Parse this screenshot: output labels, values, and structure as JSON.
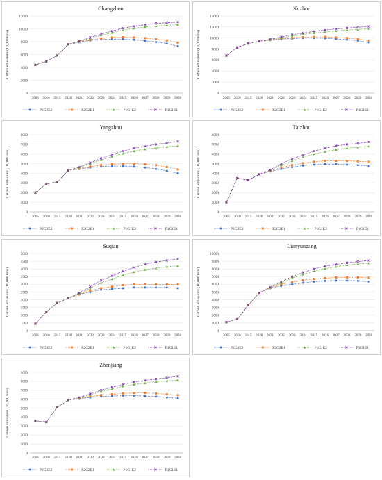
{
  "chart_data": [
    {
      "type": "line",
      "title": "Changzhou",
      "ylabel": "Carbon emissions (10,000 tons)",
      "ylim": [
        0,
        12000
      ],
      "yticks": [
        0,
        2000,
        4000,
        6000,
        8000,
        10000,
        12000
      ],
      "x": [
        2005,
        2010,
        2015,
        2020,
        2021,
        2022,
        2023,
        2024,
        2025,
        2026,
        2027,
        2028,
        2029,
        2030
      ],
      "colors": {
        "P2G2E2": "#4472c4",
        "P2G2E1": "#ed7d31",
        "P1G1E2": "#70ad47",
        "P1G1E1": "#7030a0"
      },
      "series": [
        {
          "name": "P2G2E2",
          "values": [
            4400,
            4950,
            5850,
            7600,
            7900,
            8200,
            8350,
            8400,
            8400,
            8300,
            8150,
            7950,
            7700,
            7300
          ]
        },
        {
          "name": "P2G2E1",
          "values": [
            4400,
            4950,
            5850,
            7600,
            8000,
            8300,
            8500,
            8650,
            8700,
            8650,
            8550,
            8400,
            8200,
            7850
          ]
        },
        {
          "name": "P1G1E2",
          "values": [
            4400,
            4950,
            5850,
            7600,
            8050,
            8500,
            9000,
            9400,
            9800,
            10100,
            10300,
            10450,
            10550,
            10650
          ]
        },
        {
          "name": "P1G1E1",
          "values": [
            4400,
            4950,
            5850,
            7600,
            8100,
            8650,
            9200,
            9650,
            10100,
            10400,
            10650,
            10850,
            10950,
            11050
          ]
        }
      ]
    },
    {
      "type": "line",
      "title": "Xuzhou",
      "ylabel": "Carbon emissions (10,000 tons)",
      "ylim": [
        0,
        14000
      ],
      "yticks": [
        0,
        2000,
        4000,
        6000,
        8000,
        10000,
        12000,
        14000
      ],
      "x": [
        2005,
        2010,
        2015,
        2020,
        2021,
        2022,
        2023,
        2024,
        2025,
        2026,
        2027,
        2028,
        2029,
        2030
      ],
      "series": [
        {
          "name": "P2G2E2",
          "values": [
            6800,
            8300,
            9000,
            9400,
            9600,
            9800,
            9900,
            10000,
            10000,
            9950,
            9850,
            9700,
            9500,
            9200
          ]
        },
        {
          "name": "P2G2E1",
          "values": [
            6800,
            8300,
            9000,
            9400,
            9650,
            9900,
            10050,
            10150,
            10200,
            10200,
            10100,
            10000,
            9800,
            9550
          ]
        },
        {
          "name": "P1G1E2",
          "values": [
            6800,
            8300,
            9000,
            9400,
            9700,
            10050,
            10350,
            10650,
            10900,
            11100,
            11300,
            11450,
            11550,
            11700
          ]
        },
        {
          "name": "P1G1E1",
          "values": [
            6800,
            8300,
            9000,
            9400,
            9800,
            10200,
            10600,
            10900,
            11200,
            11450,
            11650,
            11800,
            11950,
            12100
          ]
        }
      ]
    },
    {
      "type": "line",
      "title": "Yangzhou",
      "ylabel": "Carbon emissions (10,000 tons)",
      "ylim": [
        0,
        8000
      ],
      "yticks": [
        0,
        1000,
        2000,
        3000,
        4000,
        5000,
        6000,
        7000,
        8000
      ],
      "x": [
        2005,
        2010,
        2015,
        2020,
        2021,
        2022,
        2023,
        2024,
        2025,
        2026,
        2027,
        2028,
        2029,
        2030
      ],
      "series": [
        {
          "name": "P2G2E2",
          "values": [
            2000,
            2900,
            3100,
            4300,
            4450,
            4600,
            4700,
            4750,
            4750,
            4700,
            4600,
            4450,
            4250,
            4000
          ]
        },
        {
          "name": "P2G2E1",
          "values": [
            2000,
            2900,
            3100,
            4300,
            4500,
            4700,
            4850,
            4950,
            5000,
            5000,
            4950,
            4850,
            4650,
            4400
          ]
        },
        {
          "name": "P1G1E2",
          "values": [
            2000,
            2900,
            3100,
            4300,
            4600,
            5000,
            5400,
            5750,
            6050,
            6300,
            6500,
            6650,
            6750,
            6850
          ]
        },
        {
          "name": "P1G1E1",
          "values": [
            2000,
            2900,
            3100,
            4300,
            4650,
            5100,
            5550,
            5950,
            6300,
            6600,
            6800,
            7000,
            7150,
            7300
          ]
        }
      ]
    },
    {
      "type": "line",
      "title": "Taizhou",
      "ylabel": "Carbon emissions (10,000 tons)",
      "ylim": [
        0,
        8000
      ],
      "yticks": [
        0,
        1000,
        2000,
        3000,
        4000,
        5000,
        6000,
        7000,
        8000
      ],
      "x": [
        2005,
        2010,
        2015,
        2020,
        2021,
        2022,
        2023,
        2024,
        2025,
        2026,
        2027,
        2028,
        2029,
        2030
      ],
      "series": [
        {
          "name": "P2G2E2",
          "values": [
            1000,
            3500,
            3300,
            3900,
            4200,
            4450,
            4650,
            4800,
            4900,
            4950,
            4950,
            4900,
            4850,
            4750
          ]
        },
        {
          "name": "P2G2E1",
          "values": [
            1000,
            3500,
            3300,
            3900,
            4250,
            4600,
            4850,
            5050,
            5200,
            5300,
            5300,
            5300,
            5250,
            5200
          ]
        },
        {
          "name": "P1G1E2",
          "values": [
            1000,
            3500,
            3300,
            3900,
            4300,
            4850,
            5300,
            5700,
            6000,
            6250,
            6450,
            6600,
            6700,
            6800
          ]
        },
        {
          "name": "P1G1E1",
          "values": [
            1000,
            3500,
            3300,
            3900,
            4350,
            5000,
            5500,
            5900,
            6300,
            6600,
            6850,
            7000,
            7100,
            7250
          ]
        }
      ]
    },
    {
      "type": "line",
      "title": "Suqian",
      "ylabel": "Carbon emissions (10,000 tons)",
      "ylim": [
        0,
        5000
      ],
      "yticks": [
        0,
        500,
        1000,
        1500,
        2000,
        2500,
        3000,
        3500,
        4000,
        4500,
        5000
      ],
      "x": [
        2005,
        2010,
        2015,
        2020,
        2021,
        2022,
        2023,
        2024,
        2025,
        2026,
        2027,
        2028,
        2029,
        2030
      ],
      "series": [
        {
          "name": "P2G2E2",
          "values": [
            450,
            1200,
            1800,
            2100,
            2350,
            2500,
            2650,
            2700,
            2750,
            2800,
            2800,
            2800,
            2800,
            2750
          ]
        },
        {
          "name": "P2G2E1",
          "values": [
            450,
            1200,
            1800,
            2100,
            2350,
            2600,
            2750,
            2850,
            2950,
            3000,
            3000,
            3000,
            3000,
            3000
          ]
        },
        {
          "name": "P1G1E2",
          "values": [
            450,
            1200,
            1800,
            2100,
            2400,
            2750,
            3100,
            3350,
            3600,
            3800,
            3950,
            4050,
            4150,
            4200
          ]
        },
        {
          "name": "P1G1E1",
          "values": [
            450,
            1200,
            1800,
            2100,
            2450,
            2850,
            3250,
            3550,
            3850,
            4100,
            4300,
            4450,
            4550,
            4650
          ]
        }
      ]
    },
    {
      "type": "line",
      "title": "Lianyungang",
      "ylabel": "Carbon emissions (10,000 tons)",
      "ylim": [
        0,
        10000
      ],
      "yticks": [
        0,
        1000,
        2000,
        3000,
        4000,
        5000,
        6000,
        7000,
        8000,
        9000,
        10000
      ],
      "x": [
        2005,
        2010,
        2015,
        2020,
        2021,
        2022,
        2023,
        2024,
        2025,
        2026,
        2027,
        2028,
        2029,
        2030
      ],
      "series": [
        {
          "name": "P2G2E2",
          "values": [
            1100,
            1500,
            3300,
            4900,
            5500,
            5800,
            6000,
            6200,
            6350,
            6450,
            6500,
            6500,
            6450,
            6350
          ]
        },
        {
          "name": "P2G2E1",
          "values": [
            1100,
            1500,
            3300,
            4900,
            5550,
            6000,
            6300,
            6550,
            6700,
            6800,
            6900,
            6900,
            6900,
            6850
          ]
        },
        {
          "name": "P1G1E2",
          "values": [
            1100,
            1500,
            3300,
            4900,
            5600,
            6200,
            6800,
            7300,
            7700,
            8050,
            8300,
            8500,
            8650,
            8750
          ]
        },
        {
          "name": "P1G1E1",
          "values": [
            1100,
            1500,
            3300,
            4900,
            5650,
            6350,
            7000,
            7550,
            8000,
            8350,
            8600,
            8800,
            8950,
            9100
          ]
        }
      ]
    },
    {
      "type": "line",
      "title": "Zhenjiang",
      "ylabel": "Carbon emissions (10,000 tons)",
      "ylim": [
        0,
        9000
      ],
      "yticks": [
        0,
        1000,
        2000,
        3000,
        4000,
        5000,
        6000,
        7000,
        8000,
        9000
      ],
      "x": [
        2005,
        2010,
        2015,
        2020,
        2021,
        2022,
        2023,
        2024,
        2025,
        2026,
        2027,
        2028,
        2029,
        2030
      ],
      "series": [
        {
          "name": "P2G2E2",
          "values": [
            3600,
            3450,
            5100,
            5900,
            6050,
            6200,
            6300,
            6350,
            6400,
            6400,
            6350,
            6300,
            6200,
            6100
          ]
        },
        {
          "name": "P2G2E1",
          "values": [
            3600,
            3450,
            5100,
            5900,
            6100,
            6300,
            6450,
            6550,
            6650,
            6700,
            6700,
            6650,
            6550,
            6450
          ]
        },
        {
          "name": "P1G1E2",
          "values": [
            3600,
            3450,
            5100,
            5900,
            6150,
            6500,
            6850,
            7150,
            7450,
            7650,
            7800,
            7950,
            8050,
            8150
          ]
        },
        {
          "name": "P1G1E1",
          "values": [
            3600,
            3450,
            5100,
            5900,
            6200,
            6600,
            7000,
            7350,
            7650,
            7900,
            8100,
            8250,
            8400,
            8550
          ]
        }
      ]
    }
  ]
}
